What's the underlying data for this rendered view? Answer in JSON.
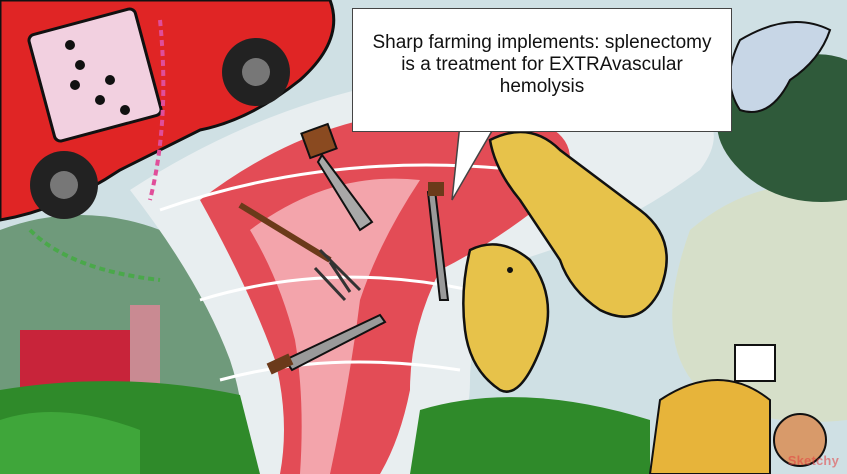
{
  "caption": {
    "text": "Sharp farming implements: splenectomy is a treatment for EXTRAvascular hemolysis"
  },
  "watermark": {
    "text": "Sketchy"
  },
  "colors": {
    "tornado_red": "#e23a45",
    "sky": "#cfe0e4",
    "grass": "#2f8a2a",
    "car_red": "#e02525",
    "llama_yellow": "#e7c24a"
  }
}
